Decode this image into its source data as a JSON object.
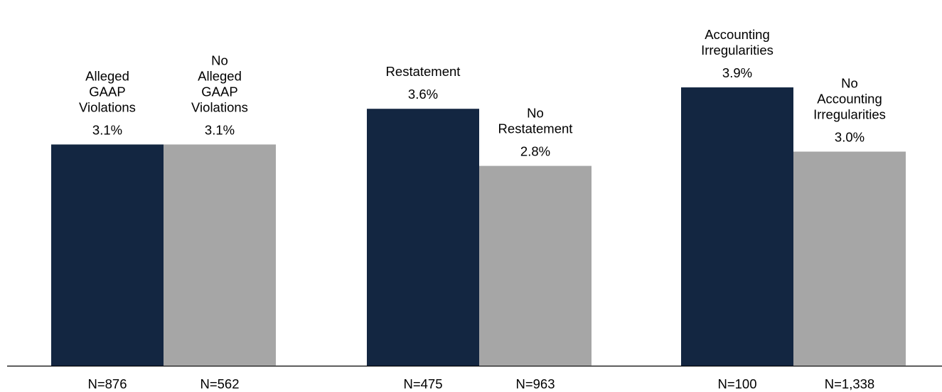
{
  "chart_data": {
    "type": "bar",
    "title": "",
    "xlabel": "",
    "ylabel": "",
    "ylim": [
      0,
      4.0
    ],
    "grid": false,
    "legend": "none",
    "colors": {
      "primary": "#132641",
      "comparison": "#a6a6a6",
      "axis": "#000000"
    },
    "groups": [
      {
        "bars": [
          {
            "label": [
              "Alleged",
              "GAAP",
              "Violations"
            ],
            "value": 3.1,
            "value_label": "3.1%",
            "n_label": "N=876",
            "color": "primary"
          },
          {
            "label": [
              "No",
              "Alleged",
              "GAAP",
              "Violations"
            ],
            "value": 3.1,
            "value_label": "3.1%",
            "n_label": "N=562",
            "color": "comparison"
          }
        ]
      },
      {
        "bars": [
          {
            "label": [
              "Restatement"
            ],
            "value": 3.6,
            "value_label": "3.6%",
            "n_label": "N=475",
            "color": "primary"
          },
          {
            "label": [
              "No",
              "Restatement"
            ],
            "value": 2.8,
            "value_label": "2.8%",
            "n_label": "N=963",
            "color": "comparison"
          }
        ]
      },
      {
        "bars": [
          {
            "label": [
              "Accounting",
              "Irregularities"
            ],
            "value": 3.9,
            "value_label": "3.9%",
            "n_label": "N=100",
            "color": "primary"
          },
          {
            "label": [
              "No",
              "Accounting",
              "Irregularities"
            ],
            "value": 3.0,
            "value_label": "3.0%",
            "n_label": "N=1,338",
            "color": "comparison"
          }
        ]
      }
    ]
  }
}
